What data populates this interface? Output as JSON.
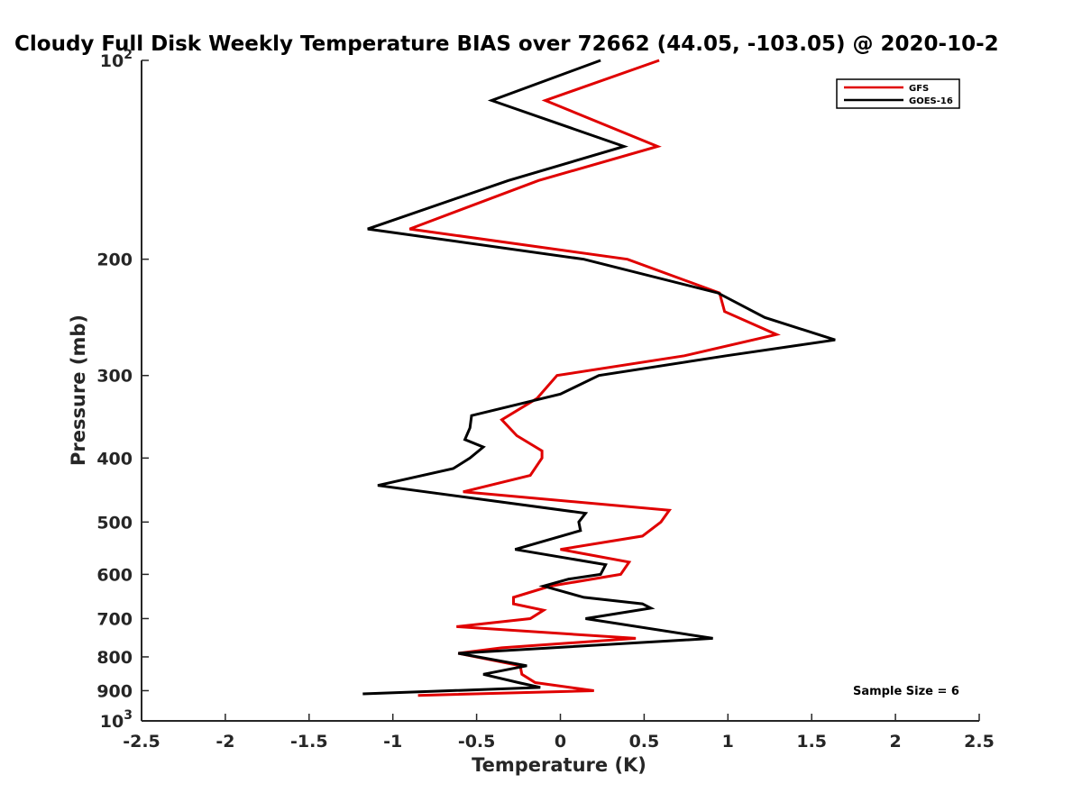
{
  "chart_data": {
    "type": "line",
    "title": "Cloudy Full Disk Weekly Temperature BIAS over 72662 (44.05, -103.05) @ 2020-10-2",
    "xlabel": "Temperature (K)",
    "ylabel": "Pressure (mb)",
    "xlim": [
      -2.5,
      2.5
    ],
    "ylim": [
      100,
      1000
    ],
    "y_scale": "log",
    "y_reversed": true,
    "x_ticks": [
      "-2.5",
      "-2",
      "-1.5",
      "-1",
      "-0.5",
      "0",
      "0.5",
      "1",
      "1.5",
      "2",
      "2.5"
    ],
    "y_ticks": [
      {
        "value": 100,
        "base": "10",
        "exp": "2"
      },
      {
        "value": 200,
        "label": "200"
      },
      {
        "value": 300,
        "label": "300"
      },
      {
        "value": 400,
        "label": "400"
      },
      {
        "value": 500,
        "label": "500"
      },
      {
        "value": 600,
        "label": "600"
      },
      {
        "value": 700,
        "label": "700"
      },
      {
        "value": 800,
        "label": "800"
      },
      {
        "value": 900,
        "label": "900"
      },
      {
        "value": 1000,
        "base": "10",
        "exp": "3"
      }
    ],
    "legend_position": "top-right",
    "annotation": "Sample Size = 6",
    "series": [
      {
        "name": "GFS",
        "color": "#e00000",
        "points": [
          [
            0.59,
            100
          ],
          [
            -0.09,
            115
          ],
          [
            0.58,
            135
          ],
          [
            -0.13,
            152
          ],
          [
            -0.9,
            180
          ],
          [
            0.4,
            200
          ],
          [
            0.95,
            225
          ],
          [
            0.98,
            240
          ],
          [
            1.29,
            260
          ],
          [
            0.74,
            280
          ],
          [
            -0.02,
            300
          ],
          [
            -0.14,
            325
          ],
          [
            -0.35,
            350
          ],
          [
            -0.26,
            370
          ],
          [
            -0.11,
            390
          ],
          [
            -0.11,
            400
          ],
          [
            -0.18,
            425
          ],
          [
            -0.58,
            450
          ],
          [
            0.65,
            480
          ],
          [
            0.6,
            500
          ],
          [
            0.49,
            525
          ],
          [
            0.0,
            550
          ],
          [
            0.41,
            575
          ],
          [
            0.36,
            600
          ],
          [
            -0.06,
            625
          ],
          [
            -0.28,
            650
          ],
          [
            -0.28,
            665
          ],
          [
            -0.1,
            680
          ],
          [
            -0.18,
            700
          ],
          [
            -0.62,
            720
          ],
          [
            0.45,
            750
          ],
          [
            -0.35,
            775
          ],
          [
            -0.61,
            790
          ],
          [
            -0.24,
            825
          ],
          [
            -0.23,
            850
          ],
          [
            -0.15,
            875
          ],
          [
            0.2,
            900
          ],
          [
            -0.85,
            915
          ]
        ]
      },
      {
        "name": "GOES-16",
        "color": "#000000",
        "points": [
          [
            0.24,
            100
          ],
          [
            -0.41,
            115
          ],
          [
            0.38,
            135
          ],
          [
            -0.31,
            152
          ],
          [
            -1.15,
            180
          ],
          [
            0.14,
            200
          ],
          [
            0.94,
            225
          ],
          [
            1.22,
            245
          ],
          [
            1.64,
            265
          ],
          [
            0.99,
            280
          ],
          [
            0.23,
            300
          ],
          [
            0.0,
            320
          ],
          [
            -0.53,
            345
          ],
          [
            -0.54,
            360
          ],
          [
            -0.57,
            375
          ],
          [
            -0.46,
            385
          ],
          [
            -0.54,
            400
          ],
          [
            -0.64,
            415
          ],
          [
            -1.09,
            440
          ],
          [
            0.15,
            485
          ],
          [
            0.11,
            500
          ],
          [
            0.12,
            515
          ],
          [
            -0.27,
            550
          ],
          [
            0.27,
            580
          ],
          [
            0.24,
            600
          ],
          [
            0.05,
            610
          ],
          [
            -0.1,
            625
          ],
          [
            0.14,
            650
          ],
          [
            0.49,
            665
          ],
          [
            0.54,
            675
          ],
          [
            0.15,
            700
          ],
          [
            0.91,
            750
          ],
          [
            -0.61,
            790
          ],
          [
            -0.2,
            825
          ],
          [
            -0.46,
            850
          ],
          [
            -0.25,
            875
          ],
          [
            -0.12,
            890
          ],
          [
            -1.18,
            910
          ]
        ]
      }
    ]
  }
}
